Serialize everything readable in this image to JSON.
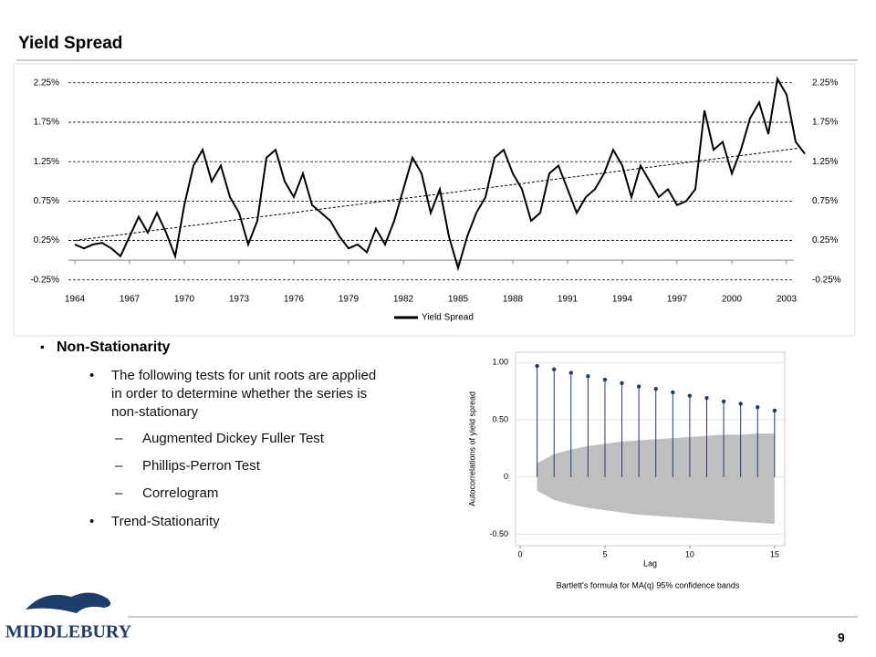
{
  "title": "Yield Spread",
  "bullets": {
    "heading": "Non-Stationarity",
    "items": [
      {
        "text": "The following tests for unit roots are applied in order to determine whether the series is non-stationary",
        "subitems": [
          "Augmented Dickey Fuller Test",
          "Phillips-Perron Test",
          "Correlogram"
        ]
      },
      {
        "text": "Trend-Stationarity",
        "subitems": []
      }
    ]
  },
  "logo_text": "MIDDLEBURY",
  "page_number": "9",
  "chart_data": [
    {
      "type": "line",
      "x": [
        1964,
        1964.5,
        1965,
        1965.5,
        1966,
        1966.5,
        1967,
        1967.5,
        1968,
        1968.5,
        1969,
        1969.5,
        1970,
        1970.5,
        1971,
        1971.5,
        1972,
        1972.5,
        1973,
        1973.5,
        1974,
        1974.5,
        1975,
        1975.5,
        1976,
        1976.5,
        1977,
        1977.5,
        1978,
        1978.5,
        1979,
        1979.5,
        1980,
        1980.5,
        1981,
        1981.5,
        1982,
        1982.5,
        1983,
        1983.5,
        1984,
        1984.5,
        1985,
        1985.5,
        1986,
        1986.5,
        1987,
        1987.5,
        1988,
        1988.5,
        1989,
        1989.5,
        1990,
        1990.5,
        1991,
        1991.5,
        1992,
        1992.5,
        1993,
        1993.5,
        1994,
        1994.5,
        1995,
        1995.5,
        1996,
        1996.5,
        1997,
        1997.5,
        1998,
        1998.5,
        1999,
        1999.5,
        2000,
        2000.5,
        2001,
        2001.5,
        2002,
        2002.5,
        2003,
        2003.5,
        2004
      ],
      "series": [
        {
          "name": "Yield Spread",
          "color": "#000000",
          "values": [
            0.2,
            0.15,
            0.2,
            0.22,
            0.15,
            0.05,
            0.3,
            0.55,
            0.35,
            0.6,
            0.35,
            0.05,
            0.7,
            1.2,
            1.4,
            1.0,
            1.2,
            0.8,
            0.6,
            0.2,
            0.5,
            1.3,
            1.4,
            1.0,
            0.8,
            1.1,
            0.7,
            0.6,
            0.5,
            0.3,
            0.15,
            0.2,
            0.1,
            0.4,
            0.2,
            0.5,
            0.9,
            1.3,
            1.1,
            0.6,
            0.9,
            0.3,
            -0.1,
            0.3,
            0.6,
            0.8,
            1.3,
            1.4,
            1.1,
            0.9,
            0.5,
            0.6,
            1.1,
            1.2,
            0.9,
            0.6,
            0.8,
            0.9,
            1.1,
            1.4,
            1.2,
            0.8,
            1.2,
            1.0,
            0.8,
            0.9,
            0.7,
            0.75,
            0.9,
            1.9,
            1.4,
            1.5,
            1.1,
            1.4,
            1.8,
            2.0,
            1.6,
            2.3,
            2.1,
            1.5,
            1.35
          ]
        }
      ],
      "trend": {
        "x": [
          1964,
          2003.65
        ],
        "values": [
          0.25,
          1.42
        ]
      },
      "xlim": [
        1963.65,
        2003.65
      ],
      "xticks": [
        1964,
        1967,
        1970,
        1973,
        1976,
        1979,
        1982,
        1985,
        1988,
        1991,
        1994,
        1997,
        2000,
        2003
      ],
      "ylim": [
        -0.38,
        2.49
      ],
      "yticks": [
        {
          "value": -0.25,
          "label": "-0.25%"
        },
        {
          "value": 0.25,
          "label": "0.25%"
        },
        {
          "value": 0.75,
          "label": "0.75%"
        },
        {
          "value": 1.25,
          "label": "1.25%"
        },
        {
          "value": 1.75,
          "label": "1.75%"
        },
        {
          "value": 2.25,
          "label": "2.25%"
        }
      ],
      "grid": true,
      "legend": "bottom"
    },
    {
      "type": "stem",
      "x": [
        1,
        2,
        3,
        4,
        5,
        6,
        7,
        8,
        9,
        10,
        11,
        12,
        13,
        14,
        15
      ],
      "values": [
        0.97,
        0.94,
        0.91,
        0.88,
        0.85,
        0.82,
        0.79,
        0.77,
        0.74,
        0.71,
        0.69,
        0.66,
        0.64,
        0.61,
        0.58
      ],
      "band_upper": [
        0.12,
        0.2,
        0.24,
        0.27,
        0.29,
        0.31,
        0.32,
        0.33,
        0.34,
        0.35,
        0.36,
        0.37,
        0.37,
        0.38,
        0.38
      ],
      "band_lower": [
        -0.12,
        -0.2,
        -0.24,
        -0.27,
        -0.29,
        -0.31,
        -0.33,
        -0.34,
        -0.35,
        -0.36,
        -0.37,
        -0.38,
        -0.39,
        -0.4,
        -0.41
      ],
      "color": "#1f3d6b",
      "band_color": "#bfbfbf",
      "xlim": [
        -0.27,
        15.6
      ],
      "xticks": [
        0,
        5,
        10,
        15
      ],
      "ylim": [
        -0.6,
        1.09
      ],
      "yticks": [
        {
          "value": -0.5,
          "label": "-0.50"
        },
        0,
        {
          "value": 0.5,
          "label": "0.50"
        },
        {
          "value": 1,
          "label": "1.00"
        }
      ],
      "grid": true,
      "xlabel": "Lag",
      "ylabel": "Autocorrelations of yield spread",
      "note": "Bartlett's formula for MA(q) 95% confidence bands"
    }
  ]
}
